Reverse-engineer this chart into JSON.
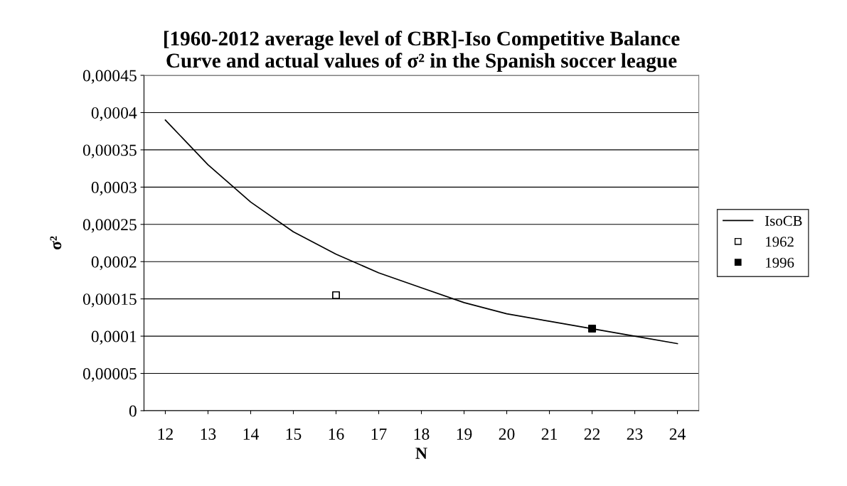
{
  "chart_data": {
    "type": "line",
    "title": "[1960-2012 average level of CBR]-Iso Competitive Balance\nCurve and actual values of σ² in the Spanish soccer league",
    "xlabel": "N",
    "ylabel": "σ²",
    "categories": [
      "12",
      "13",
      "14",
      "15",
      "16",
      "17",
      "18",
      "19",
      "20",
      "21",
      "22",
      "23",
      "24"
    ],
    "series": [
      {
        "name": "IsoCB",
        "color": "#000000",
        "marker": "none",
        "values": [
          0.00039,
          0.00033,
          0.00028,
          0.00024,
          0.00021,
          0.000185,
          0.000165,
          0.000145,
          0.00013,
          0.00012,
          0.00011,
          0.0001,
          9e-05
        ]
      },
      {
        "name": "1962",
        "type": "scatter",
        "color": "#ffffff",
        "marker": "square",
        "x": [
          "16"
        ],
        "values": [
          0.000155
        ]
      },
      {
        "name": "1996",
        "type": "scatter",
        "color": "#000000",
        "marker": "square",
        "x": [
          "22"
        ],
        "values": [
          0.00011
        ]
      }
    ],
    "ylim": [
      0,
      0.00045
    ],
    "yticks": [
      {
        "value": 0,
        "label": "0"
      },
      {
        "value": 5e-05,
        "label": "0,00005"
      },
      {
        "value": 0.0001,
        "label": "0,0001"
      },
      {
        "value": 0.00015,
        "label": "0,00015"
      },
      {
        "value": 0.0002,
        "label": "0,0002"
      },
      {
        "value": 0.00025,
        "label": "0,00025"
      },
      {
        "value": 0.0003,
        "label": "0,0003"
      },
      {
        "value": 0.00035,
        "label": "0,00035"
      },
      {
        "value": 0.0004,
        "label": "0,0004"
      },
      {
        "value": 0.00045,
        "label": "0,00045"
      }
    ],
    "grid": "y",
    "legend": "right"
  }
}
